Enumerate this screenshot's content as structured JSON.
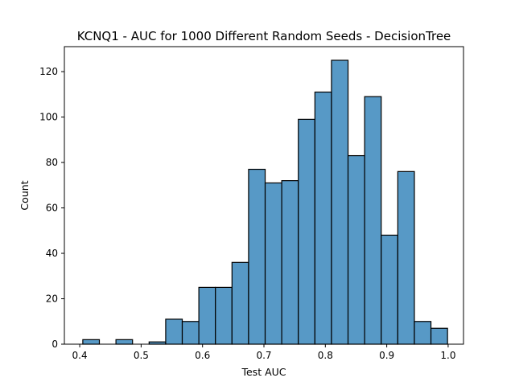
{
  "chart_data": {
    "type": "bar",
    "title": "KCNQ1 - AUC for 1000 Different Random Seeds - DecisionTree",
    "xlabel": "Test AUC",
    "ylabel": "Count",
    "xlim": [
      0.375,
      1.025
    ],
    "ylim": [
      0,
      131
    ],
    "xticks": [
      0.4,
      0.5,
      0.6,
      0.7,
      0.8,
      0.9,
      1.0
    ],
    "xtick_labels": [
      "0.4",
      "0.5",
      "0.6",
      "0.7",
      "0.8",
      "0.9",
      "1.0"
    ],
    "yticks": [
      0,
      20,
      40,
      60,
      80,
      100,
      120
    ],
    "ytick_labels": [
      "0",
      "20",
      "40",
      "60",
      "80",
      "100",
      "120"
    ],
    "grid": false,
    "bar_color": "#5799c6",
    "edge_color": "#000000",
    "bins": [
      {
        "x0": 0.405,
        "x1": 0.432,
        "count": 2
      },
      {
        "x0": 0.459,
        "x1": 0.486,
        "count": 2
      },
      {
        "x0": 0.513,
        "x1": 0.54,
        "count": 1
      },
      {
        "x0": 0.54,
        "x1": 0.567,
        "count": 11
      },
      {
        "x0": 0.567,
        "x1": 0.594,
        "count": 10
      },
      {
        "x0": 0.594,
        "x1": 0.621,
        "count": 25
      },
      {
        "x0": 0.621,
        "x1": 0.648,
        "count": 25
      },
      {
        "x0": 0.648,
        "x1": 0.675,
        "count": 36
      },
      {
        "x0": 0.675,
        "x1": 0.702,
        "count": 77
      },
      {
        "x0": 0.702,
        "x1": 0.729,
        "count": 71
      },
      {
        "x0": 0.729,
        "x1": 0.756,
        "count": 72
      },
      {
        "x0": 0.756,
        "x1": 0.783,
        "count": 99
      },
      {
        "x0": 0.783,
        "x1": 0.81,
        "count": 111
      },
      {
        "x0": 0.81,
        "x1": 0.837,
        "count": 125
      },
      {
        "x0": 0.837,
        "x1": 0.864,
        "count": 83
      },
      {
        "x0": 0.864,
        "x1": 0.891,
        "count": 109
      },
      {
        "x0": 0.891,
        "x1": 0.918,
        "count": 48
      },
      {
        "x0": 0.918,
        "x1": 0.945,
        "count": 76
      },
      {
        "x0": 0.945,
        "x1": 0.972,
        "count": 10
      },
      {
        "x0": 0.972,
        "x1": 0.999,
        "count": 7
      }
    ]
  }
}
